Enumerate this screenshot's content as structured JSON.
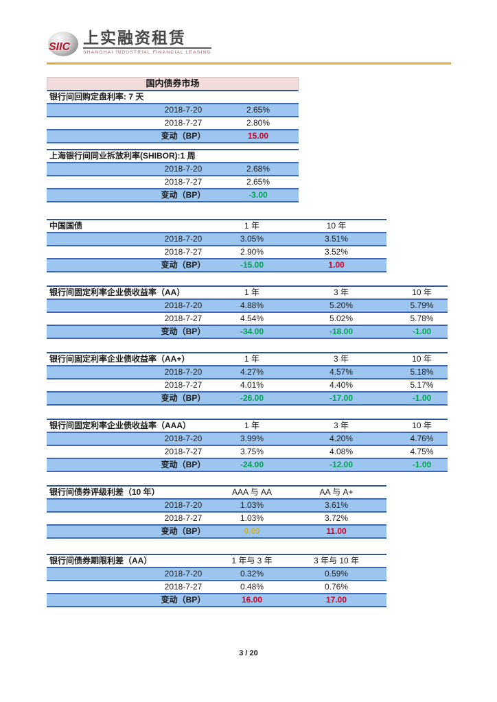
{
  "header": {
    "logo_siic": "SIIC",
    "logo_cn": "上实融资租赁",
    "logo_en": "SHANGHAI INDUSTRIAL FINANCIAL LEASING"
  },
  "section_title": "国内债券市场",
  "colors": {
    "red": "#D00026",
    "green": "#00A050",
    "yellow": "#C9B037",
    "row_blue": "#9CC6F0",
    "line_blue": "#3E66B5",
    "title_pink": "#F2DCDB",
    "gold_rule": "#E9A63B"
  },
  "tables": [
    {
      "label": "银行间回购定盘利率: 7 天",
      "columns": [],
      "rows": [
        {
          "date": "2018-7-20",
          "values": [
            "2.65%"
          ]
        },
        {
          "date": "2018-7-27",
          "values": [
            "2.80%"
          ]
        },
        {
          "date": "变动（BP）",
          "values": [
            {
              "t": "15.00",
              "c": "#D00026"
            }
          ]
        }
      ]
    },
    {
      "label": "上海银行间同业拆放利率(SHIBOR):1 周",
      "columns": [],
      "rows": [
        {
          "date": "2018-7-20",
          "values": [
            "2.68%"
          ]
        },
        {
          "date": "2018-7-27",
          "values": [
            "2.65%"
          ]
        },
        {
          "date": "变动（BP）",
          "values": [
            {
              "t": "-3.00",
              "c": "#00A050"
            }
          ]
        }
      ]
    },
    {
      "label": "中国国债",
      "columns": [
        "1 年",
        "10 年"
      ],
      "rows": [
        {
          "date": "2018-7-20",
          "values": [
            "3.05%",
            "3.51%"
          ]
        },
        {
          "date": "2018-7-27",
          "values": [
            "2.90%",
            "3.52%"
          ]
        },
        {
          "date": "变动（BP）",
          "values": [
            {
              "t": "-15.00",
              "c": "#00A050"
            },
            {
              "t": "1.00",
              "c": "#D00026"
            }
          ]
        }
      ]
    },
    {
      "label": "银行间固定利率企业债收益率（AA）",
      "columns": [
        "1 年",
        "3 年",
        "10 年"
      ],
      "rows": [
        {
          "date": "2018-7-20",
          "values": [
            "4.88%",
            "5.20%",
            "5.79%"
          ]
        },
        {
          "date": "2018-7-27",
          "values": [
            "4.54%",
            "5.02%",
            "5.78%"
          ]
        },
        {
          "date": "变动（BP）",
          "values": [
            {
              "t": "-34.00",
              "c": "#00A050"
            },
            {
              "t": "-18.00",
              "c": "#00A050"
            },
            {
              "t": "-1.00",
              "c": "#00A050"
            }
          ]
        }
      ]
    },
    {
      "label": "银行间固定利率企业债收益率（AA+）",
      "columns": [
        "1 年",
        "3 年",
        "10 年"
      ],
      "rows": [
        {
          "date": "2018-7-20",
          "values": [
            "4.27%",
            "4.57%",
            "5.18%"
          ]
        },
        {
          "date": "2018-7-27",
          "values": [
            "4.01%",
            "4.40%",
            "5.17%"
          ]
        },
        {
          "date": "变动（BP）",
          "values": [
            {
              "t": "-26.00",
              "c": "#00A050"
            },
            {
              "t": "-17.00",
              "c": "#00A050"
            },
            {
              "t": "-1.00",
              "c": "#00A050"
            }
          ]
        }
      ]
    },
    {
      "label": "银行间固定利率企业债收益率（AAA）",
      "columns": [
        "1 年",
        "3 年",
        "10 年"
      ],
      "rows": [
        {
          "date": "2018-7-20",
          "values": [
            "3.99%",
            "4.20%",
            "4.76%"
          ]
        },
        {
          "date": "2018-7-27",
          "values": [
            "3.75%",
            "4.08%",
            "4.75%"
          ]
        },
        {
          "date": "变动（BP）",
          "values": [
            {
              "t": "-24.00",
              "c": "#00A050"
            },
            {
              "t": "-12.00",
              "c": "#00A050"
            },
            {
              "t": "-1.00",
              "c": "#00A050"
            }
          ]
        }
      ]
    },
    {
      "label": "银行间债券评级利差（10 年）",
      "columns": [
        "AAA 与 AA",
        "AA 与 A+"
      ],
      "rows": [
        {
          "date": "2018-7-20",
          "values": [
            "1.03%",
            "3.61%"
          ]
        },
        {
          "date": "2018-7-27",
          "values": [
            "1.03%",
            "3.72%"
          ]
        },
        {
          "date": "变动（BP）",
          "values": [
            {
              "t": "0.00",
              "c": "#C9B037"
            },
            {
              "t": "11.00",
              "c": "#D00026"
            }
          ]
        }
      ]
    },
    {
      "label": "银行间债券期限利差（AA）",
      "columns": [
        "1 年与 3 年",
        "3 年与 10 年"
      ],
      "rows": [
        {
          "date": "2018-7-20",
          "values": [
            "0.32%",
            "0.59%"
          ]
        },
        {
          "date": "2018-7-27",
          "values": [
            "0.48%",
            "0.76%"
          ]
        },
        {
          "date": "变动（BP）",
          "values": [
            {
              "t": "16.00",
              "c": "#D00026"
            },
            {
              "t": "17.00",
              "c": "#D00026"
            }
          ]
        }
      ]
    }
  ],
  "footer": {
    "page_number": "3 / 20"
  }
}
